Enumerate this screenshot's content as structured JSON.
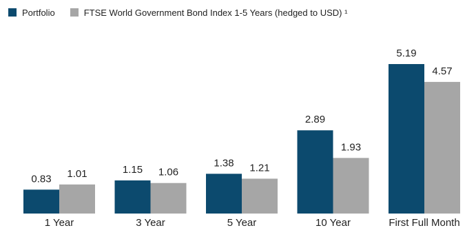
{
  "legend": {
    "items": [
      {
        "label": "Portfolio",
        "color": "#0c4a6e"
      },
      {
        "label": "FTSE World Government Bond Index 1-5 Years (hedged to USD) ¹",
        "color": "#a6a6a6"
      }
    ]
  },
  "chart_data": {
    "type": "bar",
    "categories": [
      "1 Year",
      "3 Year",
      "5 Year",
      "10 Year",
      "First Full Month"
    ],
    "series": [
      {
        "name": "Portfolio",
        "color": "#0c4a6e",
        "values": [
          0.83,
          1.15,
          1.38,
          2.89,
          5.19
        ]
      },
      {
        "name": "FTSE World Government Bond Index 1-5 Years (hedged to USD) ¹",
        "color": "#a6a6a6",
        "values": [
          1.01,
          1.06,
          1.21,
          1.93,
          4.57
        ]
      }
    ],
    "value_labels": [
      [
        "0.83",
        "1.15",
        "1.38",
        "2.89",
        "5.19"
      ],
      [
        "1.01",
        "1.06",
        "1.21",
        "1.93",
        "4.57"
      ]
    ],
    "ylim": [
      0,
      6
    ],
    "grid": false,
    "legend_position": "top-left"
  }
}
